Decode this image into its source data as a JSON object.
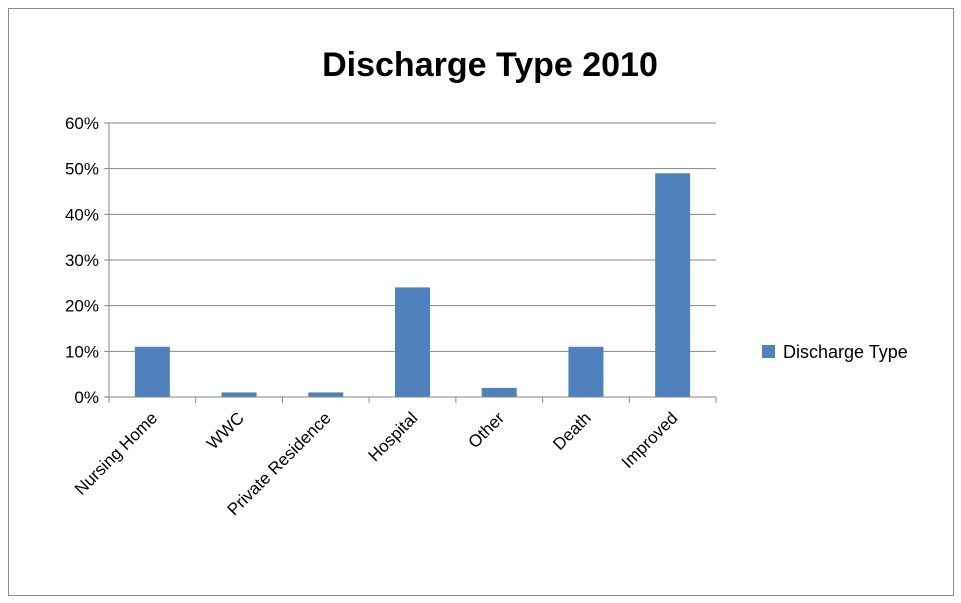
{
  "chart_data": {
    "type": "bar",
    "title": "Discharge Type 2010",
    "xlabel": "",
    "ylabel": "",
    "categories": [
      "Nursing Home",
      "WWC",
      "Private Residence",
      "Hospital",
      "Other",
      "Death",
      "Improved"
    ],
    "series": [
      {
        "name": "Discharge Type",
        "values": [
          0.11,
          0.01,
          0.01,
          0.24,
          0.02,
          0.11,
          0.49
        ],
        "color": "#4F81BD"
      }
    ],
    "ylim": [
      0,
      0.6
    ],
    "yticks": [
      "0%",
      "10%",
      "20%",
      "30%",
      "40%",
      "50%",
      "60%"
    ],
    "grid": true,
    "legend_position": "right"
  }
}
